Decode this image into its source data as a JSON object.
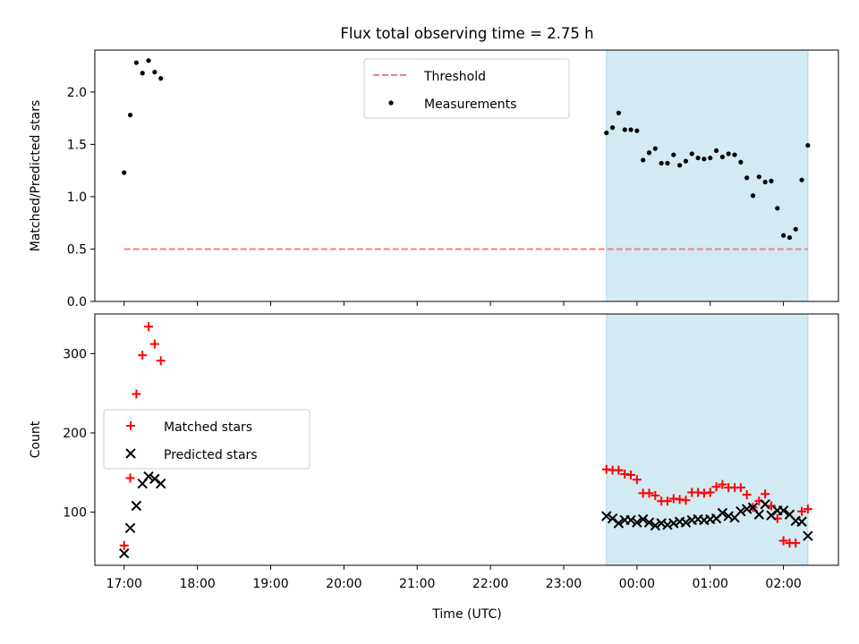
{
  "figure": {
    "title": "Flux total observing time = 2.75 h",
    "xlabel": "Time (UTC)"
  },
  "colors": {
    "threshold": "#f08080",
    "measurement": "#000000",
    "matched": "#ff0000",
    "predicted": "#000000",
    "shade": "#add8e6"
  },
  "chart_data": [
    {
      "type": "scatter",
      "title": "Flux total observing time = 2.75 h",
      "ylabel": "Matched/Predicted stars",
      "xlabel": "",
      "x_unit": "hours (UTC), 24.0 = 00:00 next day",
      "xlim": [
        16.6,
        26.75
      ],
      "ylim": [
        0,
        2.4
      ],
      "yticks": [
        0.0,
        0.5,
        1.0,
        1.5,
        2.0
      ],
      "ytick_labels": [
        "0.0",
        "0.5",
        "1.0",
        "1.5",
        "2.0"
      ],
      "legend": {
        "position": "upper center",
        "entries": [
          "Threshold",
          "Measurements"
        ]
      },
      "shaded_interval": [
        "23:35",
        "02:20"
      ],
      "series": [
        {
          "name": "Threshold",
          "style": "dashed-line",
          "points": [
            {
              "x": "17:00",
              "y": 0.5
            },
            {
              "x": "02:20",
              "y": 0.5
            }
          ]
        },
        {
          "name": "Measurements",
          "style": "dot",
          "points": [
            {
              "x": "17:00",
              "y": 1.23
            },
            {
              "x": "17:05",
              "y": 1.78
            },
            {
              "x": "17:10",
              "y": 2.28
            },
            {
              "x": "17:15",
              "y": 2.18
            },
            {
              "x": "17:20",
              "y": 2.3
            },
            {
              "x": "17:25",
              "y": 2.19
            },
            {
              "x": "17:30",
              "y": 2.13
            },
            {
              "x": "23:35",
              "y": 1.61
            },
            {
              "x": "23:40",
              "y": 1.66
            },
            {
              "x": "23:45",
              "y": 1.8
            },
            {
              "x": "23:50",
              "y": 1.64
            },
            {
              "x": "23:55",
              "y": 1.64
            },
            {
              "x": "00:00",
              "y": 1.63
            },
            {
              "x": "00:05",
              "y": 1.35
            },
            {
              "x": "00:10",
              "y": 1.42
            },
            {
              "x": "00:15",
              "y": 1.46
            },
            {
              "x": "00:20",
              "y": 1.32
            },
            {
              "x": "00:25",
              "y": 1.32
            },
            {
              "x": "00:30",
              "y": 1.4
            },
            {
              "x": "00:35",
              "y": 1.3
            },
            {
              "x": "00:40",
              "y": 1.34
            },
            {
              "x": "00:45",
              "y": 1.41
            },
            {
              "x": "00:50",
              "y": 1.37
            },
            {
              "x": "00:55",
              "y": 1.36
            },
            {
              "x": "01:00",
              "y": 1.37
            },
            {
              "x": "01:05",
              "y": 1.44
            },
            {
              "x": "01:10",
              "y": 1.38
            },
            {
              "x": "01:15",
              "y": 1.41
            },
            {
              "x": "01:20",
              "y": 1.4
            },
            {
              "x": "01:25",
              "y": 1.33
            },
            {
              "x": "01:30",
              "y": 1.18
            },
            {
              "x": "01:35",
              "y": 1.01
            },
            {
              "x": "01:40",
              "y": 1.19
            },
            {
              "x": "01:45",
              "y": 1.14
            },
            {
              "x": "01:50",
              "y": 1.15
            },
            {
              "x": "01:55",
              "y": 0.89
            },
            {
              "x": "02:00",
              "y": 0.63
            },
            {
              "x": "02:05",
              "y": 0.61
            },
            {
              "x": "02:10",
              "y": 0.69
            },
            {
              "x": "02:15",
              "y": 1.16
            },
            {
              "x": "02:20",
              "y": 1.49
            }
          ]
        }
      ]
    },
    {
      "type": "scatter",
      "ylabel": "Count",
      "xlabel": "Time (UTC)",
      "x_unit": "hours (UTC), 24.0 = 00:00 next day",
      "xlim": [
        16.6,
        26.75
      ],
      "ylim": [
        33,
        350
      ],
      "yticks": [
        100,
        200,
        300
      ],
      "ytick_labels": [
        "100",
        "200",
        "300"
      ],
      "xticks": [
        "17:00",
        "18:00",
        "19:00",
        "20:00",
        "21:00",
        "22:00",
        "23:00",
        "00:00",
        "01:00",
        "02:00"
      ],
      "xtick_labels": [
        "17:00",
        "18:00",
        "19:00",
        "20:00",
        "21:00",
        "22:00",
        "23:00",
        "00:00",
        "01:00",
        "02:00"
      ],
      "legend": {
        "position": "center left",
        "entries": [
          "Matched stars",
          "Predicted stars"
        ]
      },
      "shaded_interval": [
        "23:35",
        "02:20"
      ],
      "series": [
        {
          "name": "Matched stars",
          "style": "plus",
          "points": [
            {
              "x": "17:00",
              "y": 58
            },
            {
              "x": "17:05",
              "y": 143
            },
            {
              "x": "17:10",
              "y": 249
            },
            {
              "x": "17:15",
              "y": 298
            },
            {
              "x": "17:20",
              "y": 334
            },
            {
              "x": "17:25",
              "y": 312
            },
            {
              "x": "17:30",
              "y": 291
            },
            {
              "x": "23:35",
              "y": 154
            },
            {
              "x": "23:40",
              "y": 153
            },
            {
              "x": "23:45",
              "y": 153
            },
            {
              "x": "23:50",
              "y": 148
            },
            {
              "x": "23:55",
              "y": 147
            },
            {
              "x": "00:00",
              "y": 141
            },
            {
              "x": "00:05",
              "y": 124
            },
            {
              "x": "00:10",
              "y": 124
            },
            {
              "x": "00:15",
              "y": 121
            },
            {
              "x": "00:20",
              "y": 114
            },
            {
              "x": "00:25",
              "y": 114
            },
            {
              "x": "00:30",
              "y": 117
            },
            {
              "x": "00:35",
              "y": 116
            },
            {
              "x": "00:40",
              "y": 115
            },
            {
              "x": "00:45",
              "y": 125
            },
            {
              "x": "00:50",
              "y": 125
            },
            {
              "x": "00:55",
              "y": 124
            },
            {
              "x": "01:00",
              "y": 125
            },
            {
              "x": "01:05",
              "y": 132
            },
            {
              "x": "01:10",
              "y": 135
            },
            {
              "x": "01:15",
              "y": 131
            },
            {
              "x": "01:20",
              "y": 131
            },
            {
              "x": "01:25",
              "y": 131
            },
            {
              "x": "01:30",
              "y": 122
            },
            {
              "x": "01:35",
              "y": 106
            },
            {
              "x": "01:40",
              "y": 114
            },
            {
              "x": "01:45",
              "y": 123
            },
            {
              "x": "01:50",
              "y": 108
            },
            {
              "x": "01:55",
              "y": 92
            },
            {
              "x": "02:00",
              "y": 64
            },
            {
              "x": "02:05",
              "y": 61
            },
            {
              "x": "02:10",
              "y": 61
            },
            {
              "x": "02:15",
              "y": 101
            },
            {
              "x": "02:20",
              "y": 104
            }
          ]
        },
        {
          "name": "Predicted stars",
          "style": "x",
          "points": [
            {
              "x": "17:00",
              "y": 48
            },
            {
              "x": "17:05",
              "y": 80
            },
            {
              "x": "17:10",
              "y": 108
            },
            {
              "x": "17:15",
              "y": 136
            },
            {
              "x": "17:20",
              "y": 145
            },
            {
              "x": "17:25",
              "y": 142
            },
            {
              "x": "17:30",
              "y": 136
            },
            {
              "x": "23:35",
              "y": 95
            },
            {
              "x": "23:40",
              "y": 92
            },
            {
              "x": "23:45",
              "y": 86
            },
            {
              "x": "23:50",
              "y": 90
            },
            {
              "x": "23:55",
              "y": 90
            },
            {
              "x": "00:00",
              "y": 87
            },
            {
              "x": "00:05",
              "y": 91
            },
            {
              "x": "00:10",
              "y": 87
            },
            {
              "x": "00:15",
              "y": 83
            },
            {
              "x": "00:20",
              "y": 86
            },
            {
              "x": "00:25",
              "y": 84
            },
            {
              "x": "00:30",
              "y": 86
            },
            {
              "x": "00:35",
              "y": 88
            },
            {
              "x": "00:40",
              "y": 87
            },
            {
              "x": "00:45",
              "y": 90
            },
            {
              "x": "00:50",
              "y": 91
            },
            {
              "x": "00:55",
              "y": 90
            },
            {
              "x": "01:00",
              "y": 91
            },
            {
              "x": "01:05",
              "y": 92
            },
            {
              "x": "01:10",
              "y": 99
            },
            {
              "x": "01:15",
              "y": 95
            },
            {
              "x": "01:20",
              "y": 93
            },
            {
              "x": "01:25",
              "y": 101
            },
            {
              "x": "01:30",
              "y": 104
            },
            {
              "x": "01:35",
              "y": 106
            },
            {
              "x": "01:40",
              "y": 97
            },
            {
              "x": "01:45",
              "y": 110
            },
            {
              "x": "01:50",
              "y": 96
            },
            {
              "x": "01:55",
              "y": 102
            },
            {
              "x": "02:00",
              "y": 102
            },
            {
              "x": "02:05",
              "y": 97
            },
            {
              "x": "02:10",
              "y": 89
            },
            {
              "x": "02:15",
              "y": 88
            },
            {
              "x": "02:20",
              "y": 70
            }
          ]
        }
      ]
    }
  ]
}
